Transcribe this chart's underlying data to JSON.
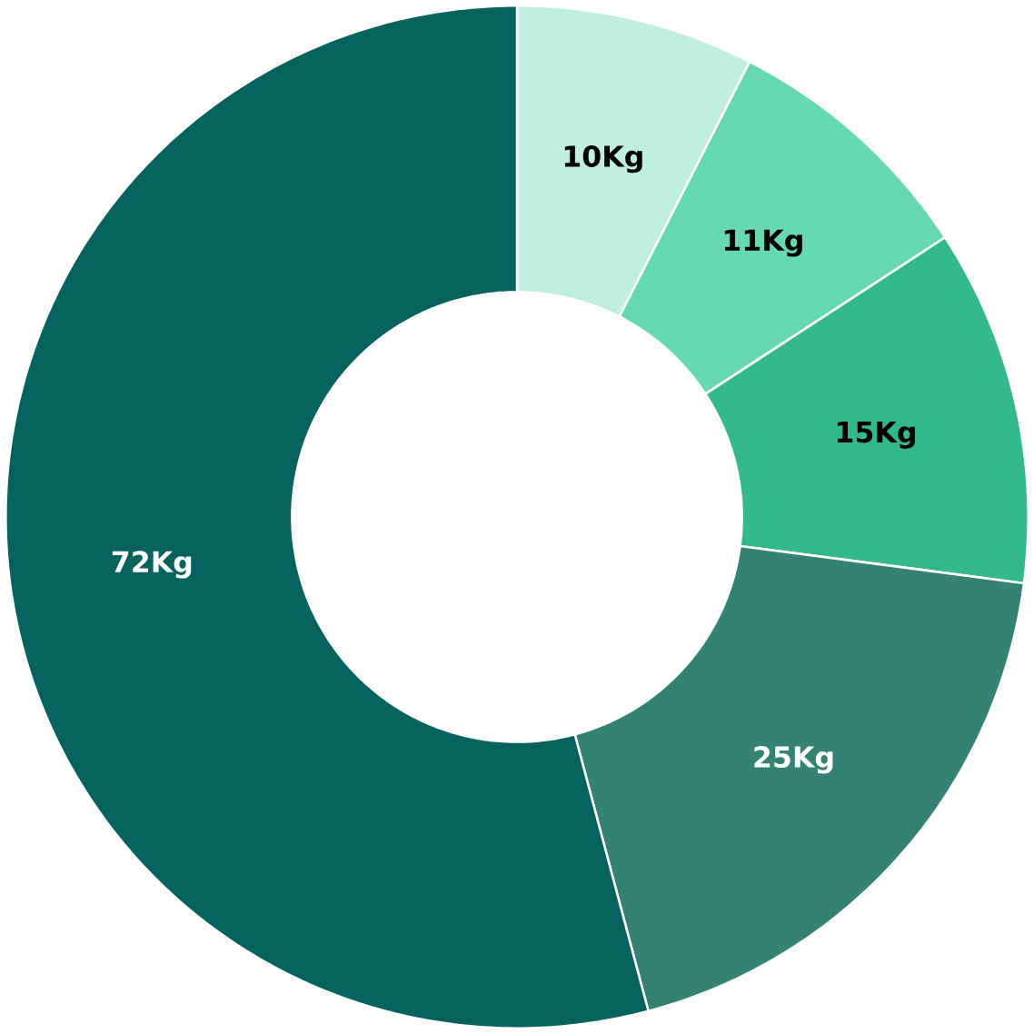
{
  "chart_data": {
    "type": "donut",
    "categories": [
      null,
      null,
      null,
      null,
      null
    ],
    "values": [
      10,
      11,
      15,
      25,
      72
    ],
    "value_labels": [
      "10Kg",
      "11Kg",
      "15Kg",
      "25Kg",
      "72Kg"
    ],
    "colors": [
      "#c0eedf",
      "#66d9b1",
      "#33b98a",
      "#338273",
      "#05625f"
    ]
  }
}
